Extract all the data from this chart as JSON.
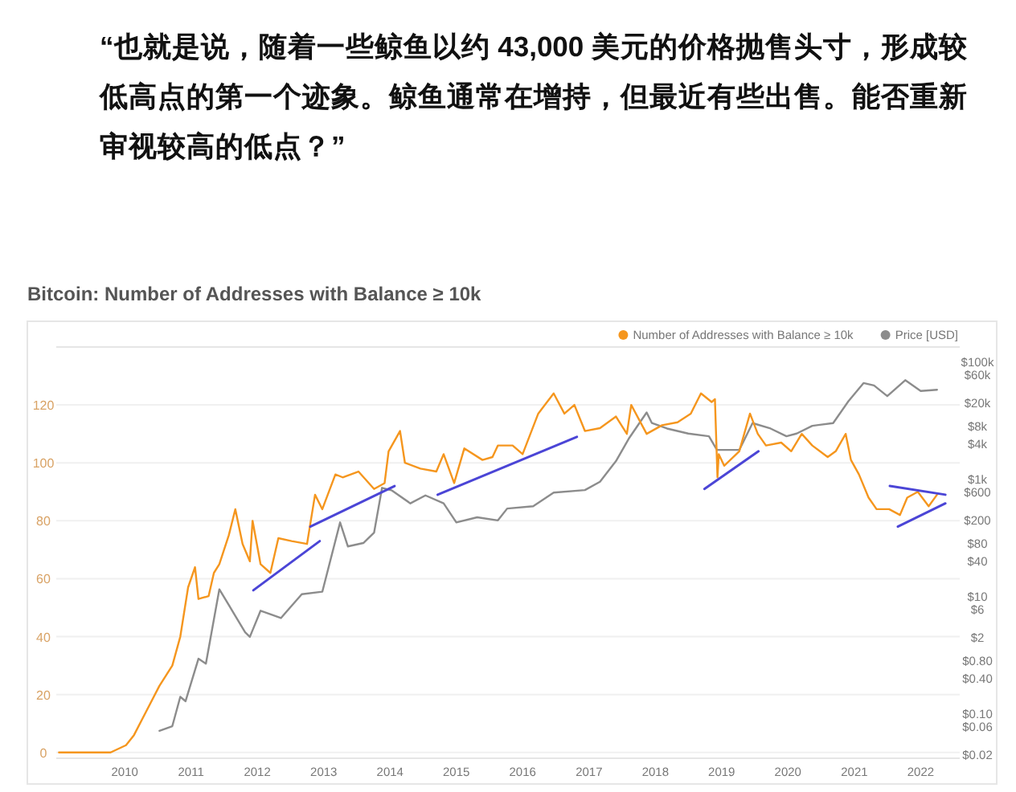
{
  "chart_data": {
    "type": "line",
    "title": "Bitcoin: Number of Addresses with Balance ≥ 10k",
    "annotations": [
      "“也就是说，随着一些鲸鱼以约 43,000 美元的价格抛售头寸，形成较低高点的第一个迹象。鲸鱼通常在增持，但最近有些出售。能否重新审视较高的低点？”"
    ],
    "xlim": [
      "2008-12-20",
      "2022-08-04"
    ],
    "xticks": [
      "2010",
      "2011",
      "2012",
      "2013",
      "2014",
      "2015",
      "2016",
      "2017",
      "2018",
      "2019",
      "2020",
      "2021",
      "2022"
    ],
    "ylim": [
      -2,
      140
    ],
    "yticks": [
      0,
      20,
      40,
      60,
      80,
      100,
      120
    ],
    "y2lim": [
      0.017,
      177000
    ],
    "y2ticks": [
      {
        "value": 100000,
        "label": "$100k"
      },
      {
        "value": 60000,
        "label": "$60k"
      },
      {
        "value": 20000,
        "label": "$20k"
      },
      {
        "value": 8000,
        "label": "$8k"
      },
      {
        "value": 4000,
        "label": "$4k"
      },
      {
        "value": 1000,
        "label": "$1k"
      },
      {
        "value": 600,
        "label": "$600"
      },
      {
        "value": 200,
        "label": "$200"
      },
      {
        "value": 80,
        "label": "$80"
      },
      {
        "value": 40,
        "label": "$40"
      },
      {
        "value": 10,
        "label": "$10"
      },
      {
        "value": 6,
        "label": "$6"
      },
      {
        "value": 2,
        "label": "$2"
      },
      {
        "value": 0.8,
        "label": "$0.80"
      },
      {
        "value": 0.4,
        "label": "$0.40"
      },
      {
        "value": 0.1,
        "label": "$0.10"
      },
      {
        "value": 0.06,
        "label": "$0.06"
      },
      {
        "value": 0.02,
        "label": "$0.02"
      }
    ],
    "log": "y2",
    "grid": "y",
    "legend": "top right",
    "series": [
      {
        "name": "Number of Addresses with Balance ≥ 10k",
        "color": "#f5961e",
        "x": [
          "2009-01-04",
          "2009-10-15",
          "2010-01-08",
          "2010-02-21",
          "2010-04-28",
          "2010-07-11",
          "2010-09-20",
          "2010-11-03",
          "2010-12-16",
          "2011-01-23",
          "2011-02-11",
          "2011-04-08",
          "2011-05-07",
          "2011-06-06",
          "2011-07-28",
          "2011-09-02",
          "2011-10-12",
          "2011-11-21",
          "2011-12-06",
          "2012-01-19",
          "2012-03-13",
          "2012-04-26",
          "2012-07-08",
          "2012-10-01",
          "2012-11-14",
          "2012-12-24",
          "2013-03-06",
          "2013-04-15",
          "2013-07-11",
          "2013-10-05",
          "2013-12-02",
          "2013-12-24",
          "2014-02-25",
          "2014-03-24",
          "2014-06-17",
          "2014-09-13",
          "2014-10-23",
          "2014-12-20",
          "2015-02-14",
          "2015-05-25",
          "2015-07-19",
          "2015-08-18",
          "2015-11-07",
          "2016-01-01",
          "2016-03-27",
          "2016-06-20",
          "2016-08-18",
          "2016-10-12",
          "2016-12-09",
          "2017-03-02",
          "2017-05-29",
          "2017-07-28",
          "2017-08-21",
          "2017-11-14",
          "2018-02-07",
          "2018-05-03",
          "2018-07-15",
          "2018-09-09",
          "2018-11-07",
          "2018-11-25",
          "2018-12-09",
          "2018-12-16",
          "2019-01-15",
          "2019-04-08",
          "2019-06-06",
          "2019-07-19",
          "2019-09-02",
          "2019-11-25",
          "2020-01-19",
          "2020-03-17",
          "2020-05-14",
          "2020-08-07",
          "2020-09-20",
          "2020-11-14",
          "2020-12-13",
          "2021-01-26",
          "2021-03-20",
          "2021-05-03",
          "2021-07-11",
          "2021-09-09",
          "2021-10-19",
          "2021-12-16",
          "2022-02-14",
          "2022-04-01"
        ],
        "values": [
          0,
          0,
          2.5,
          6,
          14,
          23,
          30,
          40,
          57,
          64,
          53,
          54,
          62,
          65,
          75,
          84,
          72,
          66,
          80,
          65,
          62,
          74,
          73,
          72,
          89,
          84,
          96,
          95,
          97,
          91,
          93,
          104,
          111,
          100,
          98,
          97,
          103,
          93,
          105,
          101,
          102,
          106,
          106,
          103,
          117,
          124,
          117,
          120,
          111,
          112,
          116,
          110,
          120,
          110,
          113,
          114,
          117,
          124,
          121,
          122,
          95,
          103,
          99,
          104,
          117,
          110,
          106,
          107,
          104,
          110,
          106,
          102,
          104,
          110,
          101,
          96,
          88,
          84,
          84,
          82,
          88,
          90,
          85,
          89
        ]
      },
      {
        "name": "Price [USD]",
        "color": "#8c8c8c",
        "axis": "y2",
        "x": [
          "2010-07-11",
          "2010-09-20",
          "2010-11-03",
          "2010-12-02",
          "2011-02-11",
          "2011-03-24",
          "2011-06-06",
          "2011-07-28",
          "2011-10-26",
          "2011-11-21",
          "2012-01-19",
          "2012-05-10",
          "2012-09-02",
          "2012-12-24",
          "2013-04-01",
          "2013-05-14",
          "2013-08-07",
          "2013-10-05",
          "2013-11-18",
          "2014-01-12",
          "2014-04-23",
          "2014-07-15",
          "2014-10-23",
          "2015-01-01",
          "2015-04-26",
          "2015-08-18",
          "2015-10-08",
          "2016-02-28",
          "2016-06-20",
          "2016-12-09",
          "2017-03-02",
          "2017-05-29",
          "2017-08-07",
          "2017-11-14",
          "2017-12-13",
          "2018-03-06",
          "2018-07-01",
          "2018-10-23",
          "2018-12-06",
          "2019-04-08",
          "2019-06-20",
          "2019-09-27",
          "2019-12-24",
          "2020-02-18",
          "2020-05-14",
          "2020-09-06",
          "2020-11-29",
          "2021-02-21",
          "2021-04-19",
          "2021-07-01",
          "2021-10-08",
          "2022-01-01",
          "2022-04-01"
        ],
        "values": [
          0.05,
          0.06,
          0.19,
          0.16,
          0.85,
          0.7,
          13,
          7,
          2.4,
          2,
          5.6,
          4.2,
          10.7,
          11.8,
          180,
          70,
          80,
          120,
          700,
          630,
          380,
          520,
          380,
          180,
          220,
          195,
          310,
          340,
          580,
          640,
          890,
          2000,
          4800,
          13500,
          8900,
          7200,
          5900,
          5300,
          3100,
          3100,
          8900,
          7200,
          5300,
          5900,
          8000,
          8900,
          21000,
          43000,
          39000,
          25700,
          48000,
          31500,
          33000
        ]
      },
      {
        "color": "#4b45d6",
        "x": [
          "2011-12-10",
          "2012-12-10"
        ],
        "values": [
          56,
          73
        ]
      },
      {
        "color": "#4b45d6",
        "x": [
          "2012-10-19",
          "2014-01-26"
        ],
        "values": [
          78,
          92
        ]
      },
      {
        "color": "#4b45d6",
        "x": [
          "2014-09-20",
          "2016-10-26"
        ],
        "values": [
          89,
          109
        ]
      },
      {
        "color": "#4b45d6",
        "x": [
          "2018-09-28",
          "2019-07-23"
        ],
        "values": [
          91,
          104
        ]
      },
      {
        "color": "#4b45d6",
        "x": [
          "2021-07-15",
          "2022-05-17"
        ],
        "values": [
          92,
          89
        ]
      },
      {
        "color": "#4b45d6",
        "x": [
          "2021-08-28",
          "2022-05-17"
        ],
        "values": [
          78,
          86
        ]
      }
    ]
  }
}
